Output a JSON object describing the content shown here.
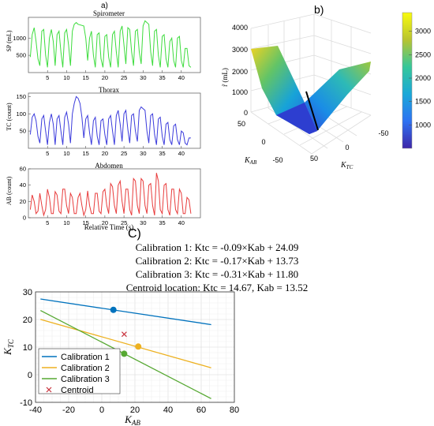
{
  "panel_labels": {
    "a": "a)",
    "b": "b)",
    "c": "C)"
  },
  "colors": {
    "spirometer": "#3ddc3d",
    "thorax": "#3b3bdc",
    "abdomen": "#e83b3b",
    "cal1": "#0072bd",
    "cal2": "#edb120",
    "cal3": "#56a832",
    "centroid": "#c8323c"
  },
  "chart_data": [
    {
      "type": "line",
      "title": "Spirometer",
      "ylabel": "SP (mL)",
      "xlabel": "",
      "xlim": [
        0,
        45
      ],
      "ylim": [
        0,
        1600
      ],
      "x_ticks": [
        5,
        10,
        15,
        20,
        25,
        30,
        35,
        40
      ],
      "y_ticks": [
        500,
        1000
      ],
      "series": [
        {
          "x": [
            0.5,
            1,
            1.5,
            2,
            2.5,
            3,
            3.5,
            4,
            4.5,
            5,
            5.5,
            6,
            6.5,
            7,
            7.5,
            8,
            8.5,
            9,
            9.5,
            10,
            10.5,
            11,
            11.5,
            12,
            12.5,
            13,
            14.5,
            15,
            15.5,
            16,
            16.5,
            17,
            17.5,
            18,
            18.5,
            19,
            19.5,
            20,
            20.5,
            21,
            21.5,
            22,
            22.5,
            23,
            23.5,
            24,
            24.5,
            25,
            25.5,
            26,
            26.5,
            27,
            27.5,
            28,
            28.5,
            29,
            29.5,
            30,
            30.5,
            31,
            31.5,
            32,
            32.5,
            33,
            33.5,
            34,
            34.5,
            35,
            35.5,
            36,
            36.5,
            37,
            37.5,
            38,
            38.5,
            39,
            39.5,
            40,
            40.5,
            41,
            41.5,
            42,
            42.5
          ],
          "y": [
            450,
            1100,
            1300,
            900,
            400,
            200,
            1200,
            1250,
            500,
            150,
            1000,
            1250,
            900,
            200,
            1100,
            1200,
            600,
            150,
            1150,
            1250,
            800,
            200,
            1200,
            1400,
            1450,
            1400,
            1350,
            1000,
            350,
            1000,
            1200,
            500,
            150,
            1100,
            1150,
            400,
            150,
            1050,
            1100,
            450,
            150,
            1100,
            1200,
            600,
            150,
            1200,
            1350,
            800,
            250,
            1300,
            1250,
            600,
            200,
            1200,
            1250,
            600,
            250,
            1350,
            1500,
            1450,
            1400,
            600,
            200,
            1200,
            1250,
            500,
            150,
            1050,
            1100,
            400,
            150,
            900,
            1000,
            350,
            150,
            1000,
            1050,
            350,
            150,
            700,
            700,
            200,
            150
          ]
        }
      ]
    },
    {
      "type": "line",
      "title": "Thorax",
      "ylabel": "TC (count)",
      "xlabel": "",
      "xlim": [
        0,
        45
      ],
      "ylim": [
        0,
        160
      ],
      "x_ticks": [
        5,
        10,
        15,
        20,
        25,
        30,
        35,
        40
      ],
      "y_ticks": [
        50,
        100,
        150
      ],
      "series": [
        {
          "x": [
            0.5,
            1,
            1.5,
            2,
            2.5,
            3,
            3.5,
            4,
            4.5,
            5,
            5.5,
            6,
            6.5,
            7,
            7.5,
            8,
            8.5,
            9,
            9.5,
            10,
            10.5,
            11,
            11.5,
            12,
            12.5,
            13,
            13.5,
            14,
            14.5,
            15,
            15.5,
            16,
            16.5,
            17,
            17.5,
            18,
            18.5,
            19,
            19.5,
            20,
            20.5,
            21,
            21.5,
            22,
            22.5,
            23,
            23.5,
            24,
            24.5,
            25,
            25.5,
            26,
            26.5,
            27,
            27.5,
            28,
            28.5,
            29,
            29.5,
            30,
            30.5,
            31,
            31.5,
            32,
            32.5,
            33,
            33.5,
            34,
            34.5,
            35,
            35.5,
            36,
            36.5,
            37,
            37.5,
            38,
            38.5,
            39,
            39.5,
            40,
            40.5,
            41,
            41.5,
            42,
            42.5
          ],
          "y": [
            40,
            90,
            100,
            80,
            35,
            15,
            85,
            95,
            50,
            10,
            75,
            100,
            70,
            10,
            85,
            95,
            50,
            10,
            90,
            105,
            70,
            15,
            100,
            130,
            150,
            145,
            130,
            90,
            30,
            85,
            95,
            45,
            10,
            80,
            90,
            35,
            10,
            80,
            85,
            40,
            10,
            85,
            95,
            50,
            10,
            95,
            110,
            70,
            20,
            100,
            110,
            55,
            15,
            95,
            100,
            50,
            20,
            110,
            120,
            115,
            110,
            50,
            15,
            95,
            100,
            40,
            10,
            85,
            90,
            35,
            10,
            70,
            75,
            25,
            10,
            65,
            70,
            25,
            10,
            50,
            45,
            15,
            10,
            30,
            30
          ]
        }
      ]
    },
    {
      "type": "line",
      "title": "Abdomen",
      "ylabel": "AB (count)",
      "xlabel": "Relative Time (s)",
      "xlim": [
        0,
        45
      ],
      "ylim": [
        0,
        60
      ],
      "x_ticks": [
        5,
        10,
        15,
        20,
        25,
        30,
        35,
        40
      ],
      "y_ticks": [
        0,
        20,
        40,
        60
      ],
      "series": [
        {
          "x": [
            0.5,
            1,
            1.5,
            2,
            2.5,
            3,
            3.5,
            4,
            4.5,
            5,
            5.5,
            6,
            6.5,
            7,
            7.5,
            8,
            8.5,
            9,
            9.5,
            10,
            10.5,
            11,
            11.5,
            12,
            12.5,
            13,
            13.5,
            14,
            14.5,
            15,
            15.5,
            16,
            16.5,
            17,
            17.5,
            18,
            18.5,
            19,
            19.5,
            20,
            20.5,
            21,
            21.5,
            22,
            22.5,
            23,
            23.5,
            24,
            24.5,
            25,
            25.5,
            26,
            26.5,
            27,
            27.5,
            28,
            28.5,
            29,
            29.5,
            30,
            30.5,
            31,
            31.5,
            32,
            32.5,
            33,
            33.5,
            34,
            34.5,
            35,
            35.5,
            36,
            36.5,
            37,
            37.5,
            38,
            38.5,
            39,
            39.5,
            40,
            40.5,
            41,
            41.5,
            42,
            42.5
          ],
          "y": [
            10,
            28,
            20,
            5,
            8,
            30,
            15,
            3,
            10,
            35,
            25,
            5,
            5,
            32,
            28,
            8,
            5,
            35,
            35,
            15,
            5,
            30,
            25,
            5,
            5,
            25,
            30,
            15,
            3,
            10,
            33,
            15,
            5,
            5,
            30,
            30,
            8,
            5,
            32,
            35,
            15,
            5,
            42,
            38,
            15,
            5,
            40,
            45,
            20,
            5,
            35,
            35,
            10,
            3,
            48,
            45,
            15,
            5,
            48,
            45,
            15,
            5,
            40,
            42,
            15,
            3,
            55,
            45,
            10,
            5,
            40,
            42,
            10,
            3,
            35,
            35,
            10,
            5,
            35,
            30,
            5,
            5,
            25,
            22,
            5
          ]
        }
      ]
    },
    {
      "type": "line",
      "title": "",
      "xlabel": "K_AB",
      "ylabel": "K_TC",
      "xlim": [
        -40,
        80
      ],
      "ylim": [
        -10,
        30
      ],
      "x_ticks": [
        -40,
        -20,
        0,
        20,
        40,
        60,
        80
      ],
      "y_ticks": [
        -10,
        0,
        10,
        20,
        30
      ],
      "grid": true,
      "legend_position": "bottom-left",
      "equation_lines": [
        "Calibration 1: Ktc = -0.09×Kab + 24.09",
        "Calibration 2: Ktc = -0.17×Kab + 13.73",
        "Calibration 3: Ktc = -0.31×Kab + 11.80",
        "Centroid location: Ktc = 14.67, Kab = 13.52"
      ],
      "series": [
        {
          "name": "Calibration 1",
          "slope": -0.09,
          "intercept": 24.09,
          "x_range": [
            -37,
            66
          ],
          "marker": [
            7,
            23.5
          ]
        },
        {
          "name": "Calibration 2",
          "slope": -0.17,
          "intercept": 13.73,
          "x_range": [
            -37,
            66
          ],
          "marker": [
            22,
            10.2
          ]
        },
        {
          "name": "Calibration 3",
          "slope": -0.31,
          "intercept": 11.8,
          "x_range": [
            -37,
            66
          ],
          "marker": [
            13.5,
            7.6
          ]
        },
        {
          "name": "Centroid",
          "point": [
            13.52,
            14.67
          ]
        }
      ]
    },
    {
      "type": "surface",
      "title": "",
      "xlabel": "K_AB",
      "ylabel": "K_TC",
      "zlabel": "r̃ (mL)",
      "z_ticks": [
        0,
        1000,
        2000,
        3000,
        4000
      ],
      "x_ticks": [
        50,
        0,
        -50
      ],
      "y_ticks": [
        50,
        0,
        -50
      ],
      "colorbar_ticks": [
        1000,
        1500,
        2000,
        2500,
        3000
      ],
      "colorbar_range": [
        500,
        3400
      ]
    }
  ]
}
